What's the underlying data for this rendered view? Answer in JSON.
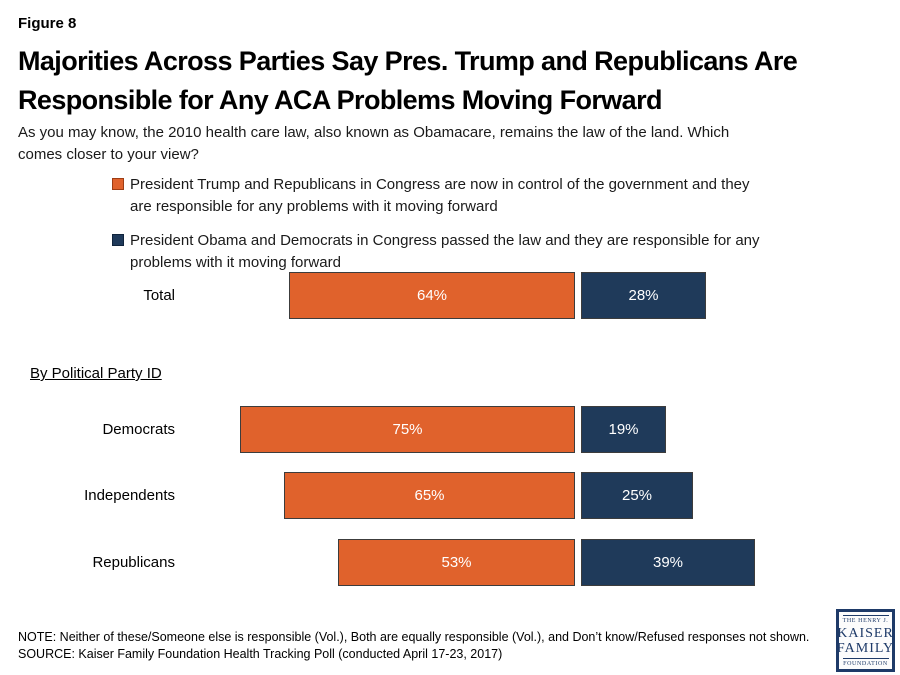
{
  "figure_label": "Figure 8",
  "title": "Majorities Across Parties Say Pres. Trump and Republicans Are Responsible for Any ACA Problems Moving Forward",
  "question": {
    "line1": "As you may know, the 2010 health care law, also known as Obamacare, remains the law of the land. Which",
    "line2": "comes closer to your view?"
  },
  "legend": {
    "items": [
      {
        "swatch": "orange-square-icon",
        "line1": "President Trump and Republicans in Congress are now in control of the government and they",
        "line2": "are responsible for any problems with it moving forward"
      },
      {
        "swatch": "navy-square-icon",
        "line1": "President Obama and Democrats in Congress passed the law and they are responsible for any",
        "line2": "problems with it moving forward"
      }
    ]
  },
  "group_heading": "By Political Party ID",
  "colors": {
    "orange": "#E0622C",
    "navy": "#1F3A5A",
    "logo_navy": "#1E3A68"
  },
  "chart_data": {
    "type": "bar",
    "orientation": "horizontal",
    "unit": "percent",
    "series": [
      {
        "name": "President Trump and Republicans in Congress are now in control of the government and they are responsible for any problems with it moving forward",
        "color": "#E0622C"
      },
      {
        "name": "President Obama and Democrats in Congress passed the law and they are responsible for any problems with it moving forward",
        "color": "#1F3A5A"
      }
    ],
    "rows": [
      {
        "label": "Total",
        "trump": 64,
        "obama": 28
      },
      {
        "label": "Democrats",
        "trump": 75,
        "obama": 19
      },
      {
        "label": "Independents",
        "trump": 65,
        "obama": 25
      },
      {
        "label": "Republicans",
        "trump": 53,
        "obama": 39
      }
    ],
    "value_suffix": "%"
  },
  "note": "NOTE: Neither of these/Someone else is responsible (Vol.), Both are equally responsible (Vol.), and Don’t know/Refused responses not shown.",
  "source": "SOURCE: Kaiser Family Foundation Health Tracking Poll (conducted April 17-23, 2017)",
  "logo": {
    "line1": "THE HENRY J.",
    "line2": "KAISER",
    "line3": "FAMILY",
    "line4": "FOUNDATION"
  }
}
